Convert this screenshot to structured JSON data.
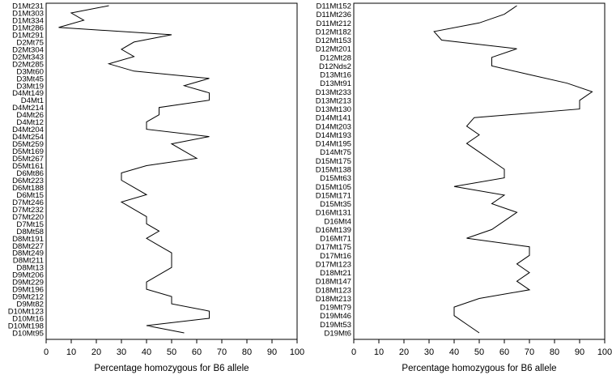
{
  "chart_data": [
    {
      "type": "line",
      "xlabel": "Percentage homozygous for B6 allele",
      "xlim": [
        0,
        100
      ],
      "xticks": [
        0,
        10,
        20,
        30,
        40,
        50,
        60,
        70,
        80,
        90,
        100
      ],
      "ylabel": "",
      "orientation": "vertical-markers",
      "markers": [
        "D1Mt231",
        "D1Mt303",
        "D1Mt334",
        "D1Mt286",
        "D1Mt291",
        "D2Mt75",
        "D2Mt304",
        "D2Mt343",
        "D2Mt285",
        "D3Mt60",
        "D3Mt45",
        "D3Mt19",
        "D4Mt149",
        "D4Mt1",
        "D4Mt214",
        "D4Mt26",
        "D4Mt12",
        "D4Mt204",
        "D4Mt254",
        "D5Mt259",
        "D5Mt169",
        "D5Mt267",
        "D5Mt161",
        "D6Mt86",
        "D6Mt223",
        "D6Mt188",
        "D6Mt15",
        "D7Mt246",
        "D7Mt232",
        "D7Mt220",
        "D7Mt15",
        "D8Mt58",
        "D8Mt191",
        "D8Mt227",
        "D8Mt249",
        "D8Mt211",
        "D8Mt13",
        "D9Mt206",
        "D9Mt229",
        "D9Mt196",
        "D9Mt212",
        "D9Mt82",
        "D10Mt123",
        "D10Mt16",
        "D10Mt198",
        "D10Mt95"
      ],
      "values": [
        25,
        10,
        15,
        5,
        50,
        35,
        30,
        35,
        25,
        35,
        65,
        55,
        65,
        65,
        45,
        45,
        40,
        40,
        65,
        50,
        55,
        60,
        40,
        30,
        30,
        35,
        40,
        30,
        35,
        40,
        40,
        45,
        40,
        45,
        50,
        50,
        50,
        45,
        40,
        40,
        50,
        50,
        65,
        65,
        40,
        55
      ]
    },
    {
      "type": "line",
      "xlabel": "Percentage homozygous for B6 allele",
      "xlim": [
        0,
        100
      ],
      "xticks": [
        0,
        10,
        20,
        30,
        40,
        50,
        60,
        70,
        80,
        90,
        100
      ],
      "ylabel": "",
      "orientation": "vertical-markers",
      "markers": [
        "D11Mt152",
        "D11Mt236",
        "D11Mt212",
        "D12Mt182",
        "D12Mt153",
        "D12Mt201",
        "D12Mt28",
        "D12Nds2",
        "D13Mt16",
        "D13Mt91",
        "D13Mt233",
        "D13Mt213",
        "D13Mt130",
        "D14Mt141",
        "D14Mt203",
        "D14Mt193",
        "D14Mt195",
        "D14Mt75",
        "D15Mt175",
        "D15Mt138",
        "D15Mt63",
        "D15Mt105",
        "D15Mt171",
        "D15Mt35",
        "D16Mt131",
        "D16Mt4",
        "D16Mt139",
        "D16Mt71",
        "D17Mt175",
        "D17Mt16",
        "D17Mt123",
        "D18Mt21",
        "D18Mt147",
        "D18Mt123",
        "D18Mt213",
        "D19Mt79",
        "D19Mt46",
        "D19Mt53",
        "D19Mt6"
      ],
      "values": [
        65,
        60,
        50,
        32,
        35,
        65,
        55,
        55,
        70,
        85,
        95,
        90,
        90,
        48,
        45,
        50,
        45,
        50,
        55,
        60,
        60,
        40,
        60,
        55,
        65,
        60,
        55,
        45,
        70,
        70,
        65,
        70,
        65,
        70,
        50,
        40,
        40,
        45,
        50
      ]
    }
  ]
}
